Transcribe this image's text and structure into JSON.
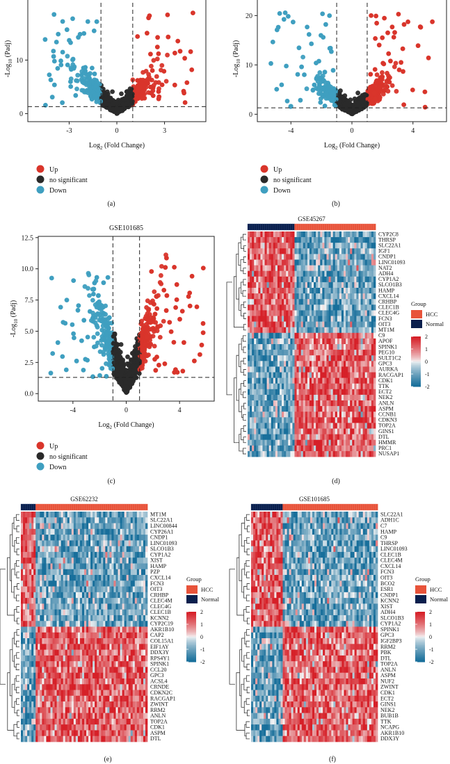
{
  "panel_labels": [
    "(a)",
    "(b)",
    "(c)",
    "(d)",
    "(e)",
    "(f)"
  ],
  "colors": {
    "up": "#d9352b",
    "ns": "#2a2a2a",
    "down": "#3f9fc0",
    "hcc": "#e8533a",
    "normal": "#0a1f4d"
  },
  "legend": {
    "up": "Up",
    "ns": "no significant",
    "down": "Down"
  },
  "heatmap_legend": {
    "group_title": "Group",
    "hcc": "HCC",
    "normal": "Normal",
    "scale_ticks": [
      "2",
      "1",
      "0",
      "-1",
      "-2"
    ]
  },
  "chart_data": [
    {
      "type": "scatter",
      "panel": "(a)",
      "title": "",
      "xlabel": "Log2 (Fold Change)",
      "ylabel": "-Log10 (Padj)",
      "xticks": [
        -3,
        0,
        3
      ],
      "yticks": [
        0,
        10
      ],
      "xlim": [
        -5.6,
        5.6
      ],
      "ylim": [
        -1.5,
        22
      ],
      "thresholds": {
        "x": [
          -1,
          1
        ],
        "y": 1.3
      }
    },
    {
      "type": "scatter",
      "panel": "(b)",
      "title": "",
      "xlabel": "Log2 (Fold Change)",
      "ylabel": "-Log10 (Padj)",
      "xticks": [
        -4,
        0,
        4
      ],
      "yticks": [
        0,
        10,
        20
      ],
      "xlim": [
        -6.2,
        6.2
      ],
      "ylim": [
        -1.5,
        24
      ],
      "thresholds": {
        "x": [
          -1,
          1
        ],
        "y": 1.3
      }
    },
    {
      "type": "scatter",
      "panel": "(c)",
      "title": "GSE101685",
      "xlabel": "Log2 (Fold Change)",
      "ylabel": "-Log10 (Padj)",
      "xticks": [
        -4,
        0,
        4
      ],
      "yticks": [
        0.0,
        2.5,
        5.0,
        7.5,
        10.0,
        12.5
      ],
      "xticklabels": [
        "-4",
        "0",
        "4"
      ],
      "yticklabels": [
        "0.0",
        "2.5",
        "5.0",
        "7.5",
        "10.0",
        "12.5"
      ],
      "xlim": [
        -6.6,
        6.6
      ],
      "ylim": [
        -0.6,
        12.6
      ],
      "thresholds": {
        "x": [
          -1,
          1
        ],
        "y": 1.3
      }
    },
    {
      "type": "heatmap",
      "panel": "(d)",
      "title": "GSE45267",
      "group_split": 0.36,
      "upper_rows": 18,
      "genes": [
        "CYP2C8",
        "THRSP",
        "SLC22A1",
        "IGF1",
        "CNDP1",
        "LINC01093",
        "NAT2",
        "ADH4",
        "CYP1A2",
        "SLCO1B3",
        "HAMP",
        "CXCL14",
        "CRHBP",
        "CLEC1B",
        "CLEC4G",
        "FCN3",
        "OIT3",
        "MT1M",
        "C9",
        "APOF",
        "SPINK1",
        "PEG10",
        "SULT1C2",
        "GPC3",
        "AURKA",
        "RACGAP1",
        "CDK1",
        "TTK",
        "ECT2",
        "NEK2",
        "ANLN",
        "ASPM",
        "CCNB1",
        "CDKN3",
        "TOP2A",
        "GINS1",
        "DTL",
        "HMMR",
        "PRC1",
        "NUSAP1"
      ]
    },
    {
      "type": "heatmap",
      "panel": "(e)",
      "title": "GSE62232",
      "group_split": 0.12,
      "upper_rows": 20,
      "genes": [
        "MT1M",
        "SLC22A1",
        "LINC00844",
        "CYP26A1",
        "CNDP1",
        "LINC01093",
        "SLCO1B3",
        "CYP1A2",
        "XIST",
        "HAMP",
        "PZP",
        "CXCL14",
        "FCN3",
        "OIT3",
        "CRHBP",
        "CLEC4M",
        "CLEC4G",
        "CLEC1B",
        "KCNN2",
        "CYP2C19",
        "AKR1B10",
        "CAP2",
        "COL15A1",
        "EIF1AY",
        "DDX3Y",
        "RPS4Y1",
        "SPINK1",
        "CCL20",
        "GPC3",
        "ACSL4",
        "CRNDE",
        "CDKN2C",
        "RACGAP1",
        "ZWINT",
        "RRM2",
        "ANLN",
        "TOP2A",
        "CDK1",
        "ASPM",
        "DTL"
      ]
    },
    {
      "type": "heatmap",
      "panel": "(f)",
      "title": "GSE101685",
      "group_split": 0.25,
      "upper_rows": 20,
      "genes": [
        "SLC22A1",
        "ADH1C",
        "C7",
        "HAMP",
        "C9",
        "THRSP",
        "LINC01093",
        "CLEC1B",
        "CLEC4M",
        "CXCL14",
        "FCN3",
        "OIT3",
        "BCO2",
        "ESR1",
        "CNDP1",
        "KCNN2",
        "XIST",
        "ADH4",
        "SLCO1B3",
        "CYP1A2",
        "SPINK1",
        "GPC3",
        "IGF2BP3",
        "RRM2",
        "PBK",
        "DTL",
        "TOP2A",
        "ANLN",
        "ASPM",
        "NUF2",
        "ZWINT",
        "CDK1",
        "ECT2",
        "GINS1",
        "NEK2",
        "BUB1B",
        "TTK",
        "NCAPG",
        "AKR1B10",
        "DDX3Y"
      ]
    }
  ]
}
